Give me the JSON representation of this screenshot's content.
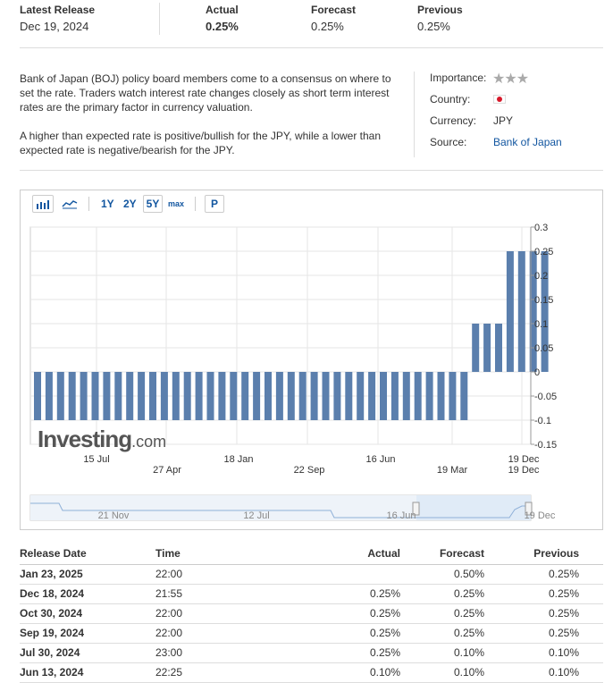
{
  "header": {
    "latest_release_label": "Latest Release",
    "latest_release_date": "Dec 19, 2024",
    "actual_label": "Actual",
    "actual_value": "0.25%",
    "forecast_label": "Forecast",
    "forecast_value": "0.25%",
    "previous_label": "Previous",
    "previous_value": "0.25%"
  },
  "description": {
    "para1": "Bank of Japan (BOJ) policy board members come to a consensus on where to set the rate. Traders watch interest rate changes closely as short term interest rates are the primary factor in currency valuation.",
    "para2": "A higher than expected rate is positive/bullish for the JPY, while a lower than expected rate is negative/bearish for the JPY."
  },
  "info": {
    "importance_label": "Importance:",
    "importance_stars": 3,
    "country_label": "Country:",
    "country_flag": "japan-flag",
    "currency_label": "Currency:",
    "currency_value": "JPY",
    "source_label": "Source:",
    "source_value": "Bank of Japan"
  },
  "toolbar": {
    "bar_icon": "bar-chart-icon",
    "line_icon": "line-chart-icon",
    "range_1y": "1Y",
    "range_2y": "2Y",
    "range_5y": "5Y",
    "range_max": "max",
    "p_label": "P",
    "selected_range": "5Y"
  },
  "watermark": {
    "brand": "Investing",
    "suffix": ".com"
  },
  "navigator": {
    "labels": [
      "21 Nov",
      "12 Jul",
      "16 Jun",
      "19 Dec"
    ]
  },
  "chart_data": {
    "type": "bar",
    "ylim": [
      -0.15,
      0.3
    ],
    "yticks": [
      "0.3",
      "0.25",
      "0.2",
      "0.15",
      "0.1",
      "0.05",
      "0",
      "-0.05",
      "-0.1",
      "-0.15"
    ],
    "ytick_values": [
      0.3,
      0.25,
      0.2,
      0.15,
      0.1,
      0.05,
      0,
      -0.05,
      -0.1,
      -0.15
    ],
    "x_labels_row1": [
      "15 Jul",
      "18 Jan",
      "16 Jun",
      "19 Dec"
    ],
    "x_labels_row2": [
      "27 Apr",
      "22 Sep",
      "19 Mar",
      "19 Dec"
    ],
    "values": [
      -0.1,
      -0.1,
      -0.1,
      -0.1,
      -0.1,
      -0.1,
      -0.1,
      -0.1,
      -0.1,
      -0.1,
      -0.1,
      -0.1,
      -0.1,
      -0.1,
      -0.1,
      -0.1,
      -0.1,
      -0.1,
      -0.1,
      -0.1,
      -0.1,
      -0.1,
      -0.1,
      -0.1,
      -0.1,
      -0.1,
      -0.1,
      -0.1,
      -0.1,
      -0.1,
      -0.1,
      -0.1,
      -0.1,
      -0.1,
      -0.1,
      -0.1,
      -0.1,
      -0.1,
      0.1,
      0.1,
      0.1,
      0.25,
      0.25,
      0.25,
      0.25
    ],
    "bar_color": "#5b7fad",
    "grid": true
  },
  "table": {
    "headers": [
      "Release Date",
      "Time",
      "Actual",
      "Forecast",
      "Previous"
    ],
    "rows": [
      {
        "date": "Jan 23, 2025",
        "time": "22:00",
        "actual": "",
        "forecast": "0.50%",
        "previous": "0.25%",
        "actual_color": ""
      },
      {
        "date": "Dec 18, 2024",
        "time": "21:55",
        "actual": "0.25%",
        "forecast": "0.25%",
        "previous": "0.25%",
        "actual_color": ""
      },
      {
        "date": "Oct 30, 2024",
        "time": "22:00",
        "actual": "0.25%",
        "forecast": "0.25%",
        "previous": "0.25%",
        "actual_color": ""
      },
      {
        "date": "Sep 19, 2024",
        "time": "22:00",
        "actual": "0.25%",
        "forecast": "0.25%",
        "previous": "0.25%",
        "actual_color": ""
      },
      {
        "date": "Jul 30, 2024",
        "time": "23:00",
        "actual": "0.25%",
        "forecast": "0.10%",
        "previous": "0.10%",
        "actual_color": "green"
      },
      {
        "date": "Jun 13, 2024",
        "time": "22:25",
        "actual": "0.10%",
        "forecast": "0.10%",
        "previous": "0.10%",
        "actual_color": ""
      }
    ]
  }
}
